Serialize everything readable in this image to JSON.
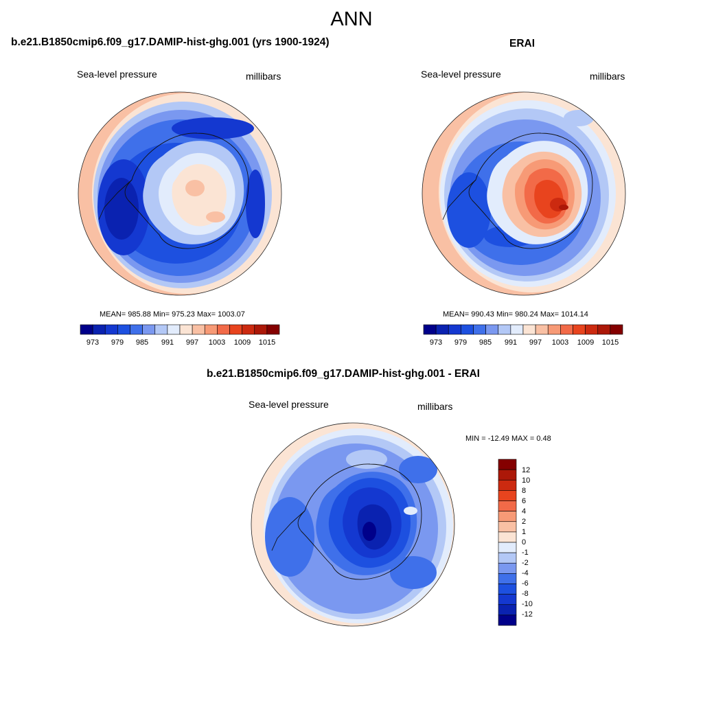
{
  "title": "ANN",
  "palette": {
    "levels": [
      -12,
      -10,
      -8,
      -6,
      -4,
      -2,
      -1,
      0,
      1,
      2,
      4,
      6,
      8,
      10,
      12
    ],
    "colors": [
      "#00008a",
      "#0a22b0",
      "#1438d0",
      "#1d50e0",
      "#3f70ea",
      "#7a98f0",
      "#b3c8f6",
      "#e2ecfc",
      "#fbe4d4",
      "#f9c0a4",
      "#f79a76",
      "#f26a48",
      "#e8441e",
      "#cc2a10",
      "#ac1808",
      "#840000"
    ]
  },
  "panels": [
    {
      "id": "model",
      "title": "b.e21.B1850cmip6.f09_g17.DAMIP-hist-ghg.001 (yrs 1900-1924)",
      "left_label": "Sea-level pressure",
      "right_label": "millibars",
      "stats": "MEAN= 985.88  Min= 975.23  Max= 1003.07",
      "colorbar_ticks": [
        "973",
        "979",
        "985",
        "991",
        "997",
        "1003",
        "1009",
        "1015"
      ]
    },
    {
      "id": "obs",
      "title": "ERAI",
      "left_label": "Sea-level pressure",
      "right_label": "millibars",
      "stats": "MEAN= 990.43  Min= 980.24  Max= 1014.14",
      "colorbar_ticks": [
        "973",
        "979",
        "985",
        "991",
        "997",
        "1003",
        "1009",
        "1015"
      ]
    },
    {
      "id": "diff",
      "title": "b.e21.B1850cmip6.f09_g17.DAMIP-hist-ghg.001 - ERAI",
      "left_label": "Sea-level pressure",
      "right_label": "millibars",
      "stats": "MIN = -12.49 MAX =   0.48",
      "colorbar_ticks": [
        "12",
        "10",
        "8",
        "6",
        "4",
        "2",
        "1",
        "0",
        "-1",
        "-2",
        "-4",
        "-6",
        "-8",
        "-10",
        "-12"
      ]
    }
  ]
}
